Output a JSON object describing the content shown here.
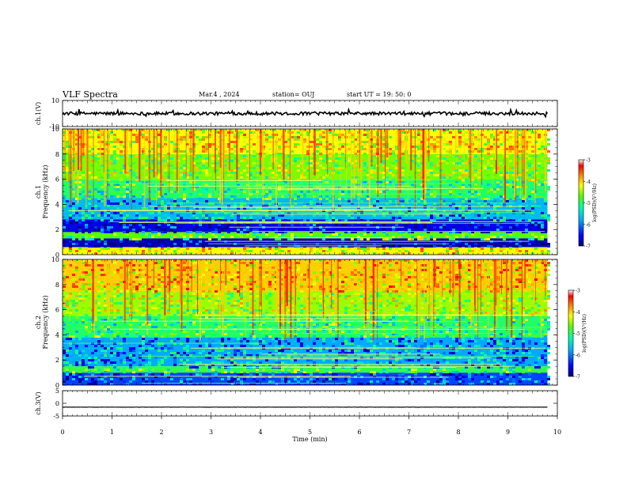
{
  "header": {
    "title": "VLF Spectra",
    "date": "Mar.4 , 2024",
    "station": "station= OUJ",
    "start": "start  UT =   19: 50: 0"
  },
  "chart_data": {
    "type": "heatmap",
    "xlabel": "Time (min)",
    "xlim": [
      0,
      10
    ],
    "xticks": [
      "0",
      "1",
      "2",
      "3",
      "4",
      "5",
      "6",
      "7",
      "8",
      "9",
      "10"
    ],
    "panels": [
      {
        "id": "ch1-waveform",
        "type": "line",
        "ylabel": "ch.1(V)",
        "ylim": [
          -10,
          10
        ],
        "yticks": [
          "10",
          "-10"
        ],
        "baseline": 0,
        "noise_amplitude": 1.2,
        "data_end_min": 9.8
      },
      {
        "id": "ch1-spectrogram",
        "type": "heatmap",
        "ylabel": "ch.1\nFrequency (kHz)",
        "ylim": [
          0,
          10
        ],
        "yticks": [
          "0",
          "2",
          "4",
          "6",
          "8",
          "10"
        ],
        "data_end_min": 9.8,
        "colorbar": {
          "label": "log(PSD)(V²/Hz)",
          "range": [
            -7,
            -3
          ],
          "ticks": [
            "-3",
            "-4",
            "-5",
            "-6",
            "-7"
          ]
        },
        "bands": [
          {
            "f": [
              0.0,
              0.6
            ],
            "level": -4.5
          },
          {
            "f": [
              0.6,
              1.3
            ],
            "level": -6.8
          },
          {
            "f": [
              1.3,
              1.8
            ],
            "level": -5.0
          },
          {
            "f": [
              1.8,
              2.8
            ],
            "level": -6.6
          },
          {
            "f": [
              2.8,
              4.5
            ],
            "level": -5.9
          },
          {
            "f": [
              4.5,
              6.0
            ],
            "level": -5.3
          },
          {
            "f": [
              6.0,
              8.0
            ],
            "level": -4.9
          },
          {
            "f": [
              8.0,
              10.0
            ],
            "level": -4.5
          }
        ]
      },
      {
        "id": "ch2-spectrogram",
        "type": "heatmap",
        "ylabel": "ch.2\nFrequency (kHz)",
        "ylim": [
          0,
          10
        ],
        "yticks": [
          "0",
          "2",
          "4",
          "6",
          "8",
          "10"
        ],
        "data_end_min": 9.8,
        "colorbar": {
          "label": "log(PSD)(V²/Hz)",
          "range": [
            -7,
            -3
          ],
          "ticks": [
            "-3",
            "-4",
            "-5",
            "-6",
            "-7"
          ]
        },
        "bands": [
          {
            "f": [
              0.0,
              1.0
            ],
            "level": -6.3
          },
          {
            "f": [
              1.0,
              1.5
            ],
            "level": -5.2
          },
          {
            "f": [
              1.5,
              3.8
            ],
            "level": -6.0
          },
          {
            "f": [
              3.8,
              5.5
            ],
            "level": -5.3
          },
          {
            "f": [
              5.5,
              7.5
            ],
            "level": -4.8
          },
          {
            "f": [
              7.5,
              10.0
            ],
            "level": -4.3
          }
        ]
      },
      {
        "id": "ch3-waveform",
        "type": "line",
        "ylabel": "ch.3(V)",
        "ylim": [
          -5,
          5
        ],
        "yticks": [
          "5",
          "0",
          "-5"
        ],
        "baseline": -1.5,
        "noise_amplitude": 0.05,
        "data_end_min": 9.8
      }
    ],
    "colormap": [
      "#000080",
      "#0000ff",
      "#00aaff",
      "#00ffaa",
      "#55ff00",
      "#ffff00",
      "#ff8800",
      "#ff0000",
      "#ffffff"
    ]
  }
}
